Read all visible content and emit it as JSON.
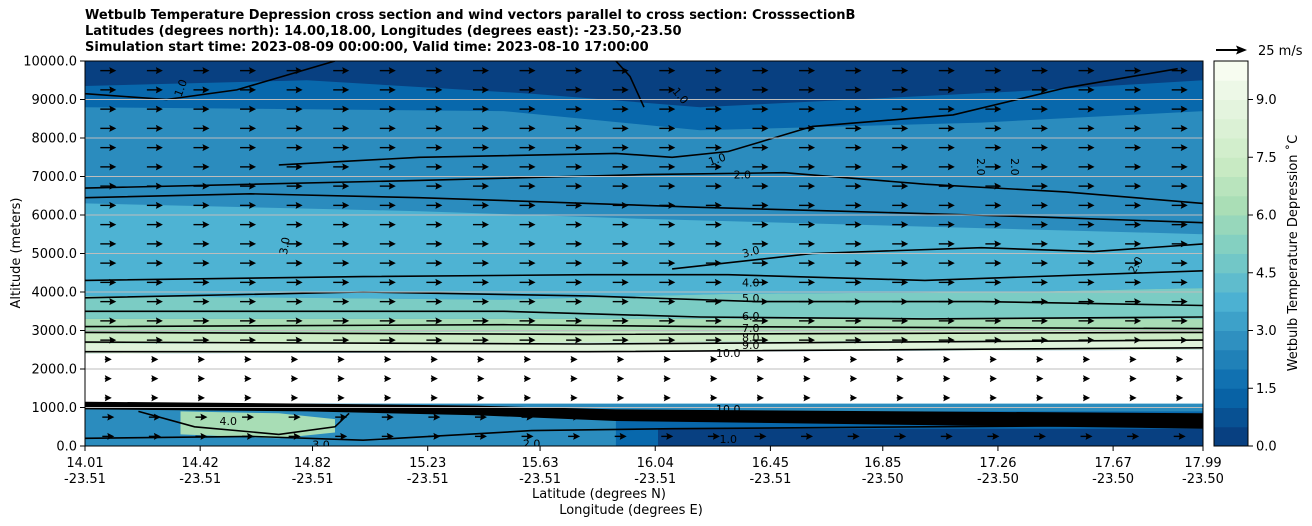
{
  "title": {
    "line1": "Wetbulb Temperature Depression cross section and wind vectors parallel to cross section: CrosssectionB",
    "line2": "Latitudes (degrees north): 14.00,18.00, Longitudes (degrees east): -23.50,-23.50",
    "line3": "Simulation start time: 2023-08-09 00:00:00, Valid time: 2023-08-10 17:00:00"
  },
  "quiver_key": {
    "label": "25 m/s"
  },
  "chart_data": {
    "type": "contour-cross-section",
    "ylabel": "Altitude (meters)",
    "xlabel_lat": "Latitude (degrees N)",
    "xlabel_lon": "Longitude (degrees E)",
    "ylim": [
      0,
      10000
    ],
    "y_ticks": [
      "0.0",
      "1000.0",
      "2000.0",
      "3000.0",
      "4000.0",
      "5000.0",
      "6000.0",
      "7000.0",
      "8000.0",
      "9000.0",
      "10000.0"
    ],
    "y_tick_values": [
      0,
      1000,
      2000,
      3000,
      4000,
      5000,
      6000,
      7000,
      8000,
      9000,
      10000
    ],
    "xlim": [
      14.01,
      17.99
    ],
    "x_tick_values": [
      14.01,
      14.42,
      14.82,
      15.23,
      15.63,
      16.04,
      16.45,
      16.85,
      17.26,
      17.67,
      17.99
    ],
    "x_tick_lat": [
      "14.01",
      "14.42",
      "14.82",
      "15.23",
      "15.63",
      "16.04",
      "16.45",
      "16.85",
      "17.26",
      "17.67",
      "17.99"
    ],
    "x_tick_lon": [
      "-23.51",
      "-23.51",
      "-23.51",
      "-23.51",
      "-23.51",
      "-23.51",
      "-23.51",
      "-23.50",
      "-23.50",
      "-23.50",
      "-23.50"
    ],
    "colorbar": {
      "label": "Wetbulb Temperature Depression ˚C",
      "min": 0,
      "max": 10,
      "ticks": [
        "0.0",
        "1.5",
        "3.0",
        "4.5",
        "6.0",
        "7.5",
        "9.0"
      ],
      "tick_values": [
        0,
        1.5,
        3,
        4.5,
        6,
        7.5,
        9
      ],
      "colors": [
        "#084081",
        "#0868ac",
        "#2b8cbe",
        "#4eb3d3",
        "#7bccc4",
        "#a8ddb5",
        "#ccebc5",
        "#e0f3db",
        "#f7fcf0"
      ]
    },
    "contour_levels": [
      {
        "level": 1.0,
        "label": "1.0"
      },
      {
        "level": 2.0,
        "label": "2.0"
      },
      {
        "level": 3.0,
        "label": "3.0"
      },
      {
        "level": 4.0,
        "label": "4.0"
      },
      {
        "level": 5.0,
        "label": "5.0"
      },
      {
        "level": 6.0,
        "label": "6.0"
      },
      {
        "level": 7.0,
        "label": "7.0"
      },
      {
        "level": 8.0,
        "label": "8.0"
      },
      {
        "level": 9.0,
        "label": "9.0"
      },
      {
        "level": 10.0,
        "label": "10.0"
      }
    ],
    "wind": {
      "direction": "parallel, toward increasing latitude",
      "reference_speed_ms": 25
    }
  }
}
